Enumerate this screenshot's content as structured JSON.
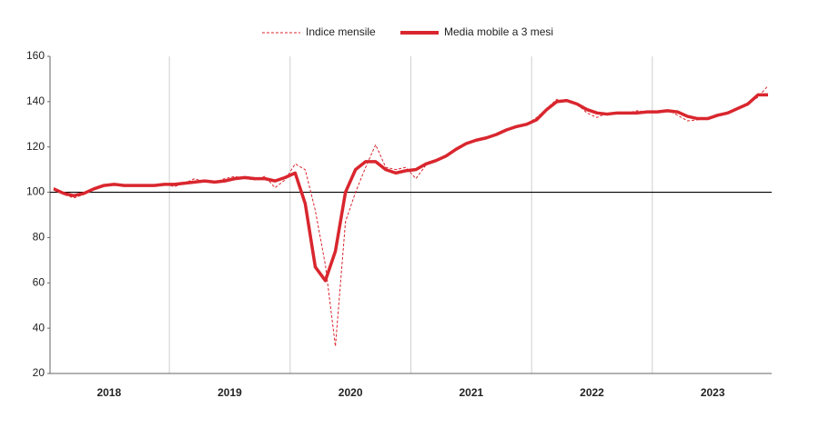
{
  "chart_data": {
    "type": "line",
    "categories": [
      null,
      null,
      null,
      null,
      null,
      null,
      "2018",
      null,
      null,
      null,
      null,
      null,
      null,
      null,
      null,
      null,
      null,
      null,
      "2019",
      null,
      null,
      null,
      null,
      null,
      null,
      null,
      null,
      null,
      null,
      null,
      "2020",
      null,
      null,
      null,
      null,
      null,
      null,
      null,
      null,
      null,
      null,
      null,
      "2021",
      null,
      null,
      null,
      null,
      null,
      null,
      null,
      null,
      null,
      null,
      null,
      "2022",
      null,
      null,
      null,
      null,
      null,
      null,
      null,
      null,
      null,
      null,
      null,
      "2023",
      null,
      null,
      null,
      null,
      null
    ],
    "series": [
      {
        "name": "Indice mensile",
        "color": "#d9262e",
        "style": "dashed",
        "values": [
          102,
          99,
          97.5,
          99,
          102,
          103,
          103.5,
          103,
          103,
          103,
          103,
          103.5,
          102.5,
          104,
          106,
          104.5,
          104.5,
          106,
          107,
          106,
          105.5,
          107,
          102,
          105.5,
          112.5,
          110,
          92,
          68,
          32,
          87,
          100,
          111,
          121,
          111,
          110,
          111,
          106,
          112,
          114,
          116.5,
          119,
          121.5,
          123,
          124,
          125.5,
          127.5,
          128.5,
          130,
          133,
          137,
          141,
          140,
          139,
          135,
          133,
          135,
          135,
          135,
          136,
          135.5,
          136,
          136.5,
          134,
          131.5,
          132,
          133,
          134,
          135.5,
          137,
          139,
          142,
          147
        ]
      },
      {
        "name": "Media mobile a 3 mesi",
        "color": "#d9262e",
        "style": "solid",
        "values": [
          101.5,
          99.5,
          98.5,
          99.5,
          101.5,
          103,
          103.5,
          103,
          103,
          103,
          103,
          103.5,
          103.5,
          104,
          104.5,
          105,
          104.5,
          105,
          106,
          106.5,
          106,
          106,
          105,
          106.5,
          108.5,
          95,
          67,
          61,
          74,
          100,
          110,
          113.5,
          113.5,
          110,
          108.5,
          109.5,
          110,
          112.5,
          114,
          116,
          119,
          121.5,
          123,
          124,
          125.5,
          127.5,
          129,
          130,
          132,
          136.5,
          140,
          140.5,
          139,
          136.5,
          135,
          134.5,
          135,
          135,
          135,
          135.5,
          135.5,
          136,
          135.5,
          133.5,
          132.5,
          132.5,
          134,
          135,
          137,
          139,
          143,
          143
        ]
      }
    ],
    "ylim": [
      20,
      160
    ],
    "yticks": [
      20,
      40,
      60,
      80,
      100,
      120,
      140,
      160
    ],
    "reference_line": 100
  }
}
